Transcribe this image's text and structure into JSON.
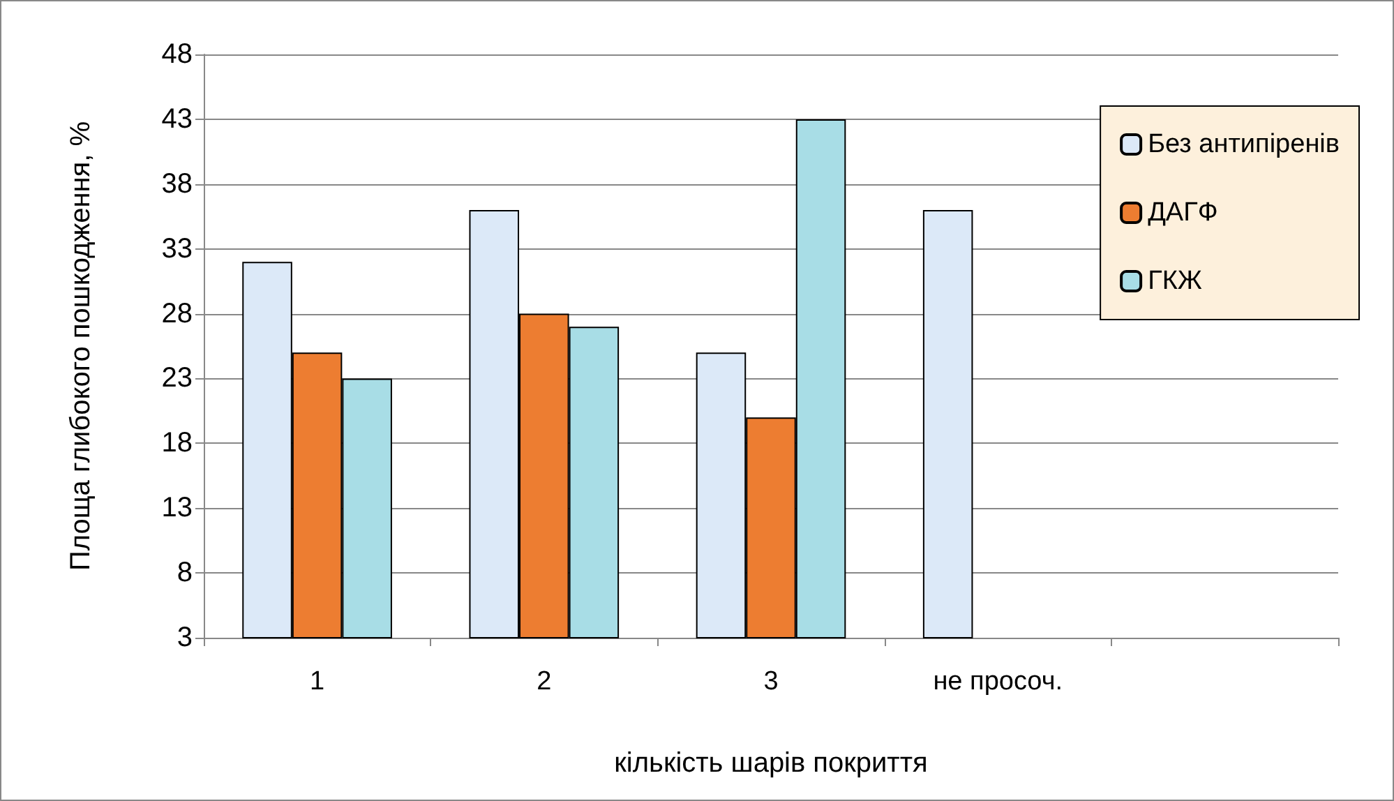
{
  "chart_data": {
    "type": "bar",
    "xlabel": "кількість шарів покриття",
    "ylabel": "Площа глибокого пошкодження, %",
    "categories": [
      "1",
      "2",
      "3",
      "не просоч.",
      null
    ],
    "series": [
      {
        "name": "Без антипіренів",
        "color": "#dce9f8",
        "values": [
          32,
          36,
          25,
          36,
          null
        ]
      },
      {
        "name": "ДАГФ",
        "color": "#ed7d31",
        "values": [
          25,
          28,
          20,
          null,
          null
        ]
      },
      {
        "name": "ГКЖ",
        "color": "#a8dde6",
        "values": [
          23,
          27,
          43,
          null,
          null
        ]
      }
    ],
    "ylim": [
      3,
      48
    ],
    "yticks": [
      3,
      8,
      13,
      18,
      23,
      28,
      33,
      38,
      43,
      48
    ],
    "grid": "y",
    "legend": "top right"
  }
}
